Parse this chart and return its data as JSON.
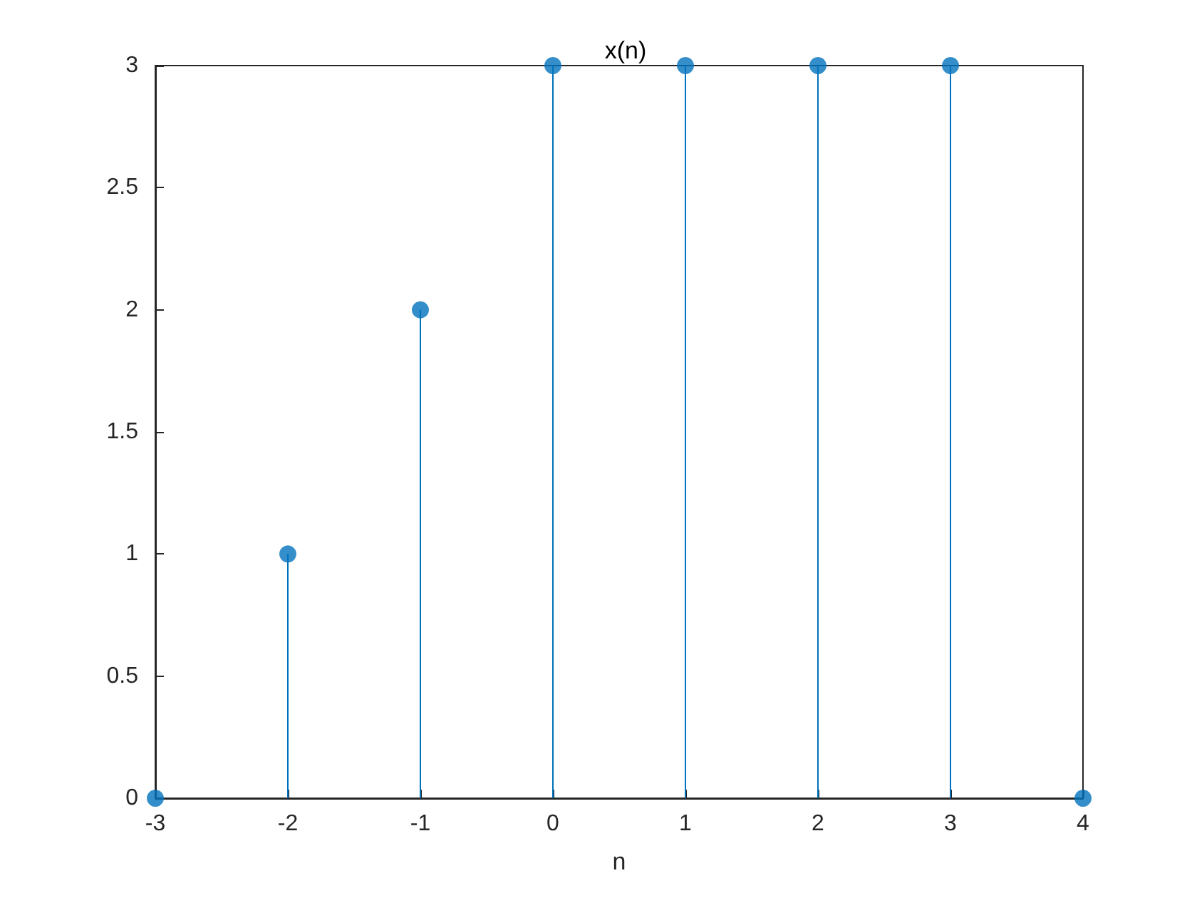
{
  "chart_data": {
    "type": "lollipop",
    "title": "x(n)",
    "xlabel": "n",
    "x": [
      -3,
      -2,
      -1,
      0,
      1,
      2,
      3,
      4
    ],
    "values": [
      0,
      1,
      2,
      3,
      3,
      3,
      3,
      0
    ],
    "color": "#0072bd",
    "marker": "circle",
    "xlim": [
      -3,
      4
    ],
    "xticks": [
      -3,
      -2,
      -1,
      0,
      1,
      2,
      3,
      4
    ],
    "ylim": [
      0,
      3
    ],
    "yticks": [
      0,
      0.5,
      1,
      1.5,
      2,
      2.5,
      3
    ],
    "grid": false
  }
}
